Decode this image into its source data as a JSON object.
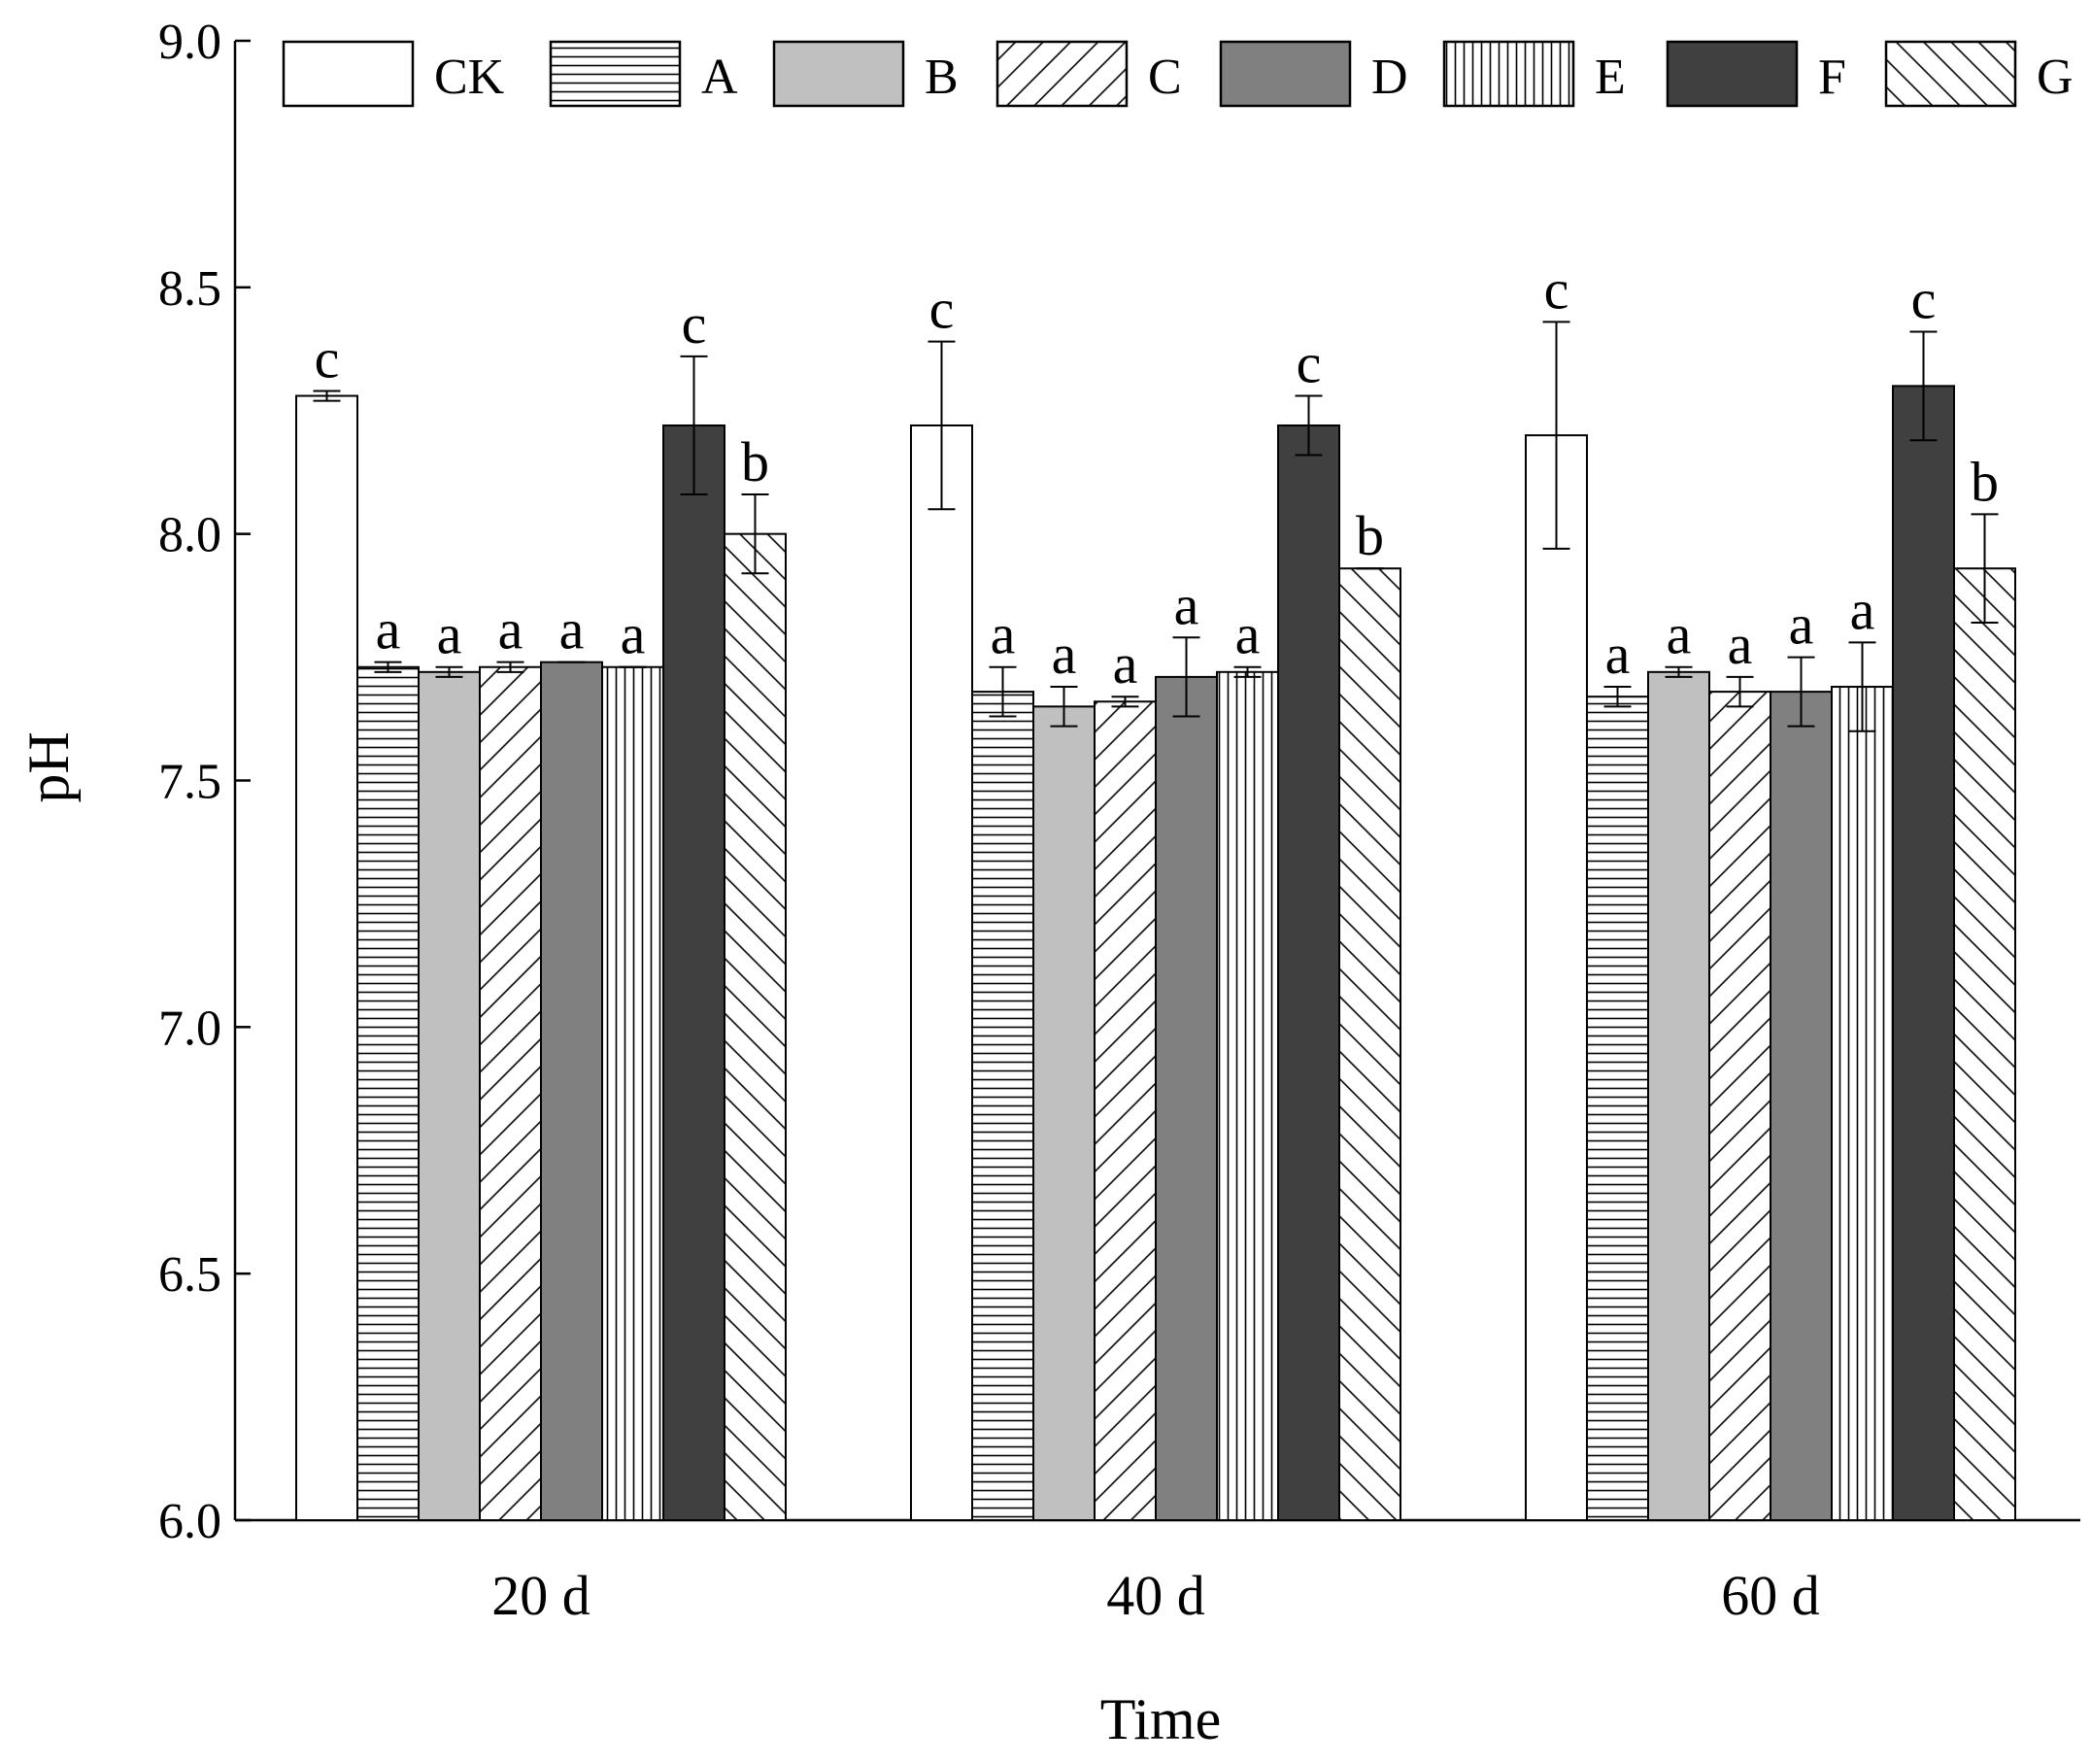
{
  "chart_data": {
    "type": "bar",
    "title": "",
    "xlabel": "Time",
    "ylabel": "pH",
    "ylim": [
      6.0,
      9.0
    ],
    "yticks": [
      6.0,
      6.5,
      7.0,
      7.5,
      8.0,
      8.5,
      9.0
    ],
    "ytick_labels": [
      "6.0",
      "6.5",
      "7.0",
      "7.5",
      "8.0",
      "8.5",
      "9.0"
    ],
    "grid": false,
    "legend_position": "top",
    "categories": [
      "20 d",
      "40 d",
      "60 d"
    ],
    "series": [
      {
        "name": "CK",
        "values": [
          8.28,
          8.22,
          8.2
        ],
        "errors": [
          0.01,
          0.17,
          0.23
        ],
        "letters": [
          "c",
          "c",
          "c"
        ],
        "fill": "#ffffff",
        "pattern": "none"
      },
      {
        "name": "A",
        "values": [
          7.73,
          7.68,
          7.67
        ],
        "errors": [
          0.01,
          0.05,
          0.02
        ],
        "letters": [
          "a",
          "a",
          "a"
        ],
        "fill": "#ffffff",
        "pattern": "horizontal"
      },
      {
        "name": "B",
        "values": [
          7.72,
          7.65,
          7.72
        ],
        "errors": [
          0.01,
          0.04,
          0.01
        ],
        "letters": [
          "a",
          "a",
          "a"
        ],
        "fill": "#c0c0c0",
        "pattern": "none"
      },
      {
        "name": "C",
        "values": [
          7.73,
          7.66,
          7.68
        ],
        "errors": [
          0.01,
          0.01,
          0.03
        ],
        "letters": [
          "a",
          "a",
          "a"
        ],
        "fill": "#ffffff",
        "pattern": "diag-up"
      },
      {
        "name": "D",
        "values": [
          7.74,
          7.71,
          7.68
        ],
        "errors": [
          0.0,
          0.08,
          0.07
        ],
        "letters": [
          "a",
          "a",
          "a"
        ],
        "fill": "#808080",
        "pattern": "none"
      },
      {
        "name": "E",
        "values": [
          7.73,
          7.72,
          7.69
        ],
        "errors": [
          0.0,
          0.01,
          0.09
        ],
        "letters": [
          "a",
          "a",
          "a"
        ],
        "fill": "#ffffff",
        "pattern": "vertical"
      },
      {
        "name": "F",
        "values": [
          8.22,
          8.22,
          8.3
        ],
        "errors": [
          0.14,
          0.06,
          0.11
        ],
        "letters": [
          "c",
          "c",
          "c"
        ],
        "fill": "#404040",
        "pattern": "none"
      },
      {
        "name": "G",
        "values": [
          8.0,
          7.93,
          7.93
        ],
        "errors": [
          0.08,
          0.0,
          0.11
        ],
        "letters": [
          "b",
          "b",
          "b"
        ],
        "fill": "#ffffff",
        "pattern": "diag-down"
      }
    ]
  }
}
